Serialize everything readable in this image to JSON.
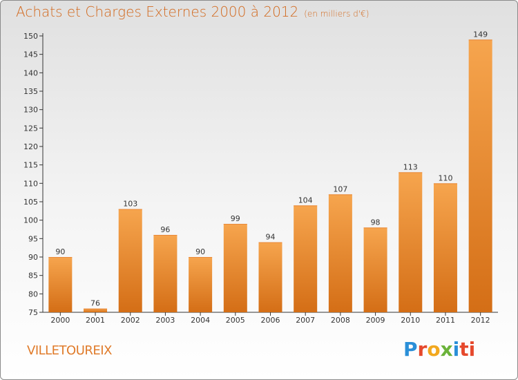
{
  "header": {
    "title": "Achats et Charges Externes 2000 à 2012",
    "unit": "(en milliers d'€)"
  },
  "footer": {
    "commune": "VILLETOUREIX",
    "logo": [
      "P",
      "r",
      "o",
      "x",
      "i",
      "ti"
    ]
  },
  "colors": {
    "title": "#d2691e",
    "bar_light": "#f6a54e",
    "bar_dark": "#d46e16",
    "axis": "#333333"
  },
  "chart_data": {
    "type": "bar",
    "title": "Achats et Charges Externes 2000 à 2012",
    "categories": [
      "2000",
      "2001",
      "2002",
      "2003",
      "2004",
      "2005",
      "2006",
      "2007",
      "2008",
      "2009",
      "2010",
      "2011",
      "2012"
    ],
    "values": [
      90,
      76,
      103,
      96,
      90,
      99,
      94,
      104,
      107,
      98,
      113,
      110,
      149
    ],
    "ylim": [
      75,
      150
    ],
    "yticks": [
      75,
      80,
      85,
      90,
      95,
      100,
      105,
      110,
      115,
      120,
      125,
      130,
      135,
      140,
      145,
      150
    ],
    "grid": false,
    "data_labels": true
  }
}
